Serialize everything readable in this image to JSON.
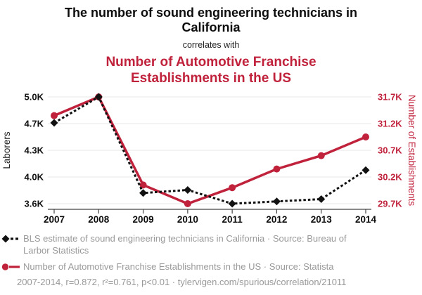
{
  "header": {
    "title": "The number of sound engineering technicians in California",
    "connector": "correlates with",
    "subtitle": "Number of Automotive Franchise Establishments in the US"
  },
  "chart_data": {
    "type": "line",
    "x": [
      2007,
      2008,
      2009,
      2010,
      2011,
      2012,
      2013,
      2014
    ],
    "series": [
      {
        "name": "BLS estimate of sound engineering technicians in California",
        "axis": "left",
        "color": "#111111",
        "marker": "diamond",
        "line_style": "dashed",
        "values": [
          4660,
          5000,
          3740,
          3780,
          3600,
          3630,
          3660,
          4040
        ]
      },
      {
        "name": "Number of Automotive Franchise Establishments in the US",
        "axis": "right",
        "color": "#c0223c",
        "marker": "circle",
        "line_style": "solid",
        "values": [
          31350,
          31700,
          30050,
          29700,
          30000,
          30350,
          30600,
          30950
        ]
      }
    ],
    "left_axis": {
      "label": "Laborers",
      "ticks": [
        5000,
        4650,
        4300,
        3950,
        3600
      ],
      "tick_labels": [
        "5.0K",
        "4.7K",
        "4.3K",
        "4.0K",
        "3.6K"
      ],
      "range": [
        3600,
        5000
      ]
    },
    "right_axis": {
      "label": "Number of Establishments",
      "ticks": [
        31700,
        31200,
        30700,
        30200,
        29700
      ],
      "tick_labels": [
        "31.7K",
        "31.2K",
        "30.7K",
        "30.2K",
        "29.7K"
      ],
      "range": [
        29700,
        31700
      ]
    },
    "grid": true,
    "legend_position": "bottom",
    "title": "The number of sound engineering technicians in California correlates with Number of Automotive Franchise Establishments in the US"
  },
  "legend": [
    {
      "text": "BLS estimate of sound engineering technicians in California · Source: Bureau of Larbor Statistics",
      "color": "#111111"
    },
    {
      "text": "Number of Automotive Franchise Establishments in the US · Source: Statista",
      "color": "#c0223c"
    }
  ],
  "footer": "2007-2014, r=0.872, r²=0.761, p<0.01 · tylervigen.com/spurious/correlation/21011",
  "colors": {
    "accent_red": "#c0223c",
    "series_black": "#111111",
    "legend_text": "#999999",
    "gridline": "#e7e7e7",
    "axis": "#444444"
  }
}
